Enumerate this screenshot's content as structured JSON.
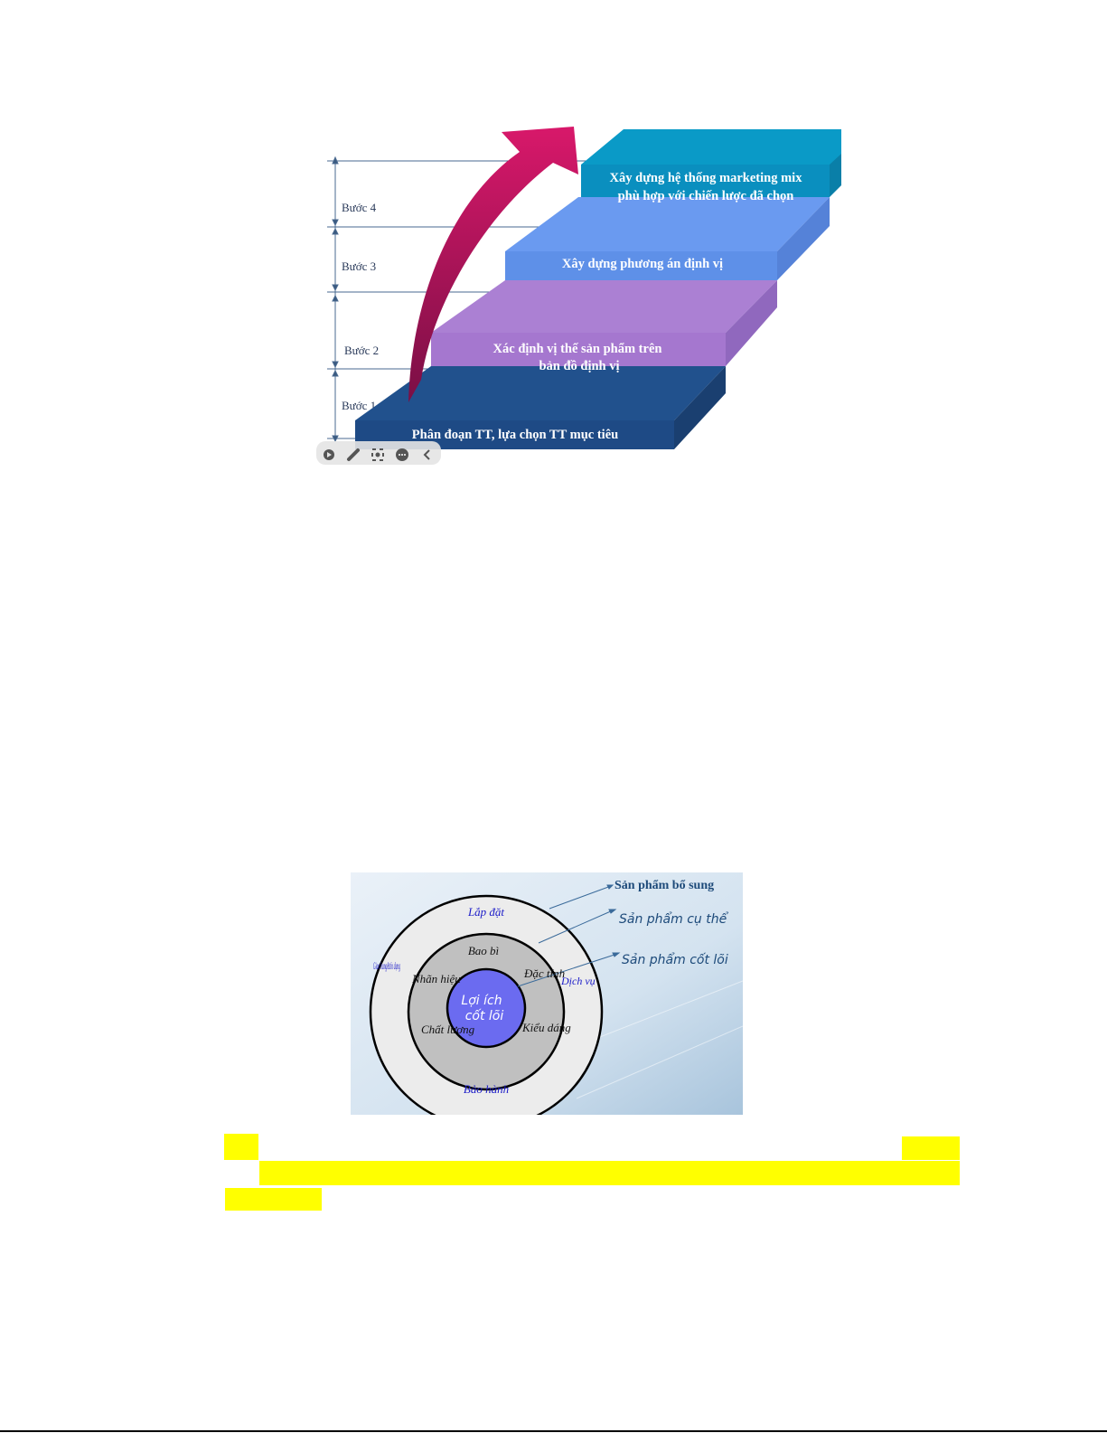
{
  "staircase": {
    "steps": [
      {
        "label": "Bước 1",
        "text_lines": [
          "Phân đoạn TT, lựa chọn TT mục tiêu"
        ],
        "color": "#1f4f8a"
      },
      {
        "label": "Bước 2",
        "text_lines": [
          "Xác định vị thế sản phẩm trên",
          "bản đồ định vị"
        ],
        "color": "#a97fd2"
      },
      {
        "label": "Bước 3",
        "text_lines": [
          "Xây dựng phương án định vị"
        ],
        "color": "#6699ee"
      },
      {
        "label": "Bước 4",
        "text_lines": [
          "Xây dựng hệ thống marketing mix",
          "phù hợp với chiến lược đã chọn"
        ],
        "color": "#0a9ac7"
      }
    ],
    "arrow_color": "#c8155e",
    "toolbar_icons": [
      "play-icon",
      "pen-icon",
      "screenshot-icon",
      "more-icon",
      "collapse-icon"
    ]
  },
  "product_levels": {
    "core": "Lợi ích cốt lõi",
    "core_lines": [
      "Lợi ích",
      "cốt lõi"
    ],
    "actual": [
      "Bao bì",
      "Nhãn hiệu",
      "Đặc tính",
      "Chất lượng",
      "Kiểu dáng"
    ],
    "augmented": [
      "Lắp đặt",
      "Giao hang&tín dụng",
      "Dịch vụ",
      "Bảo hành"
    ],
    "callouts": [
      "Sản phẩm bổ sung",
      "Sản phẩm cụ thể",
      "Sản phẩm cốt lõi"
    ],
    "colors": {
      "core": "#6b6bf0",
      "actual": "#c0c0c0",
      "augmented": "#ececec",
      "augmented_text": "#1a1ac8"
    }
  }
}
